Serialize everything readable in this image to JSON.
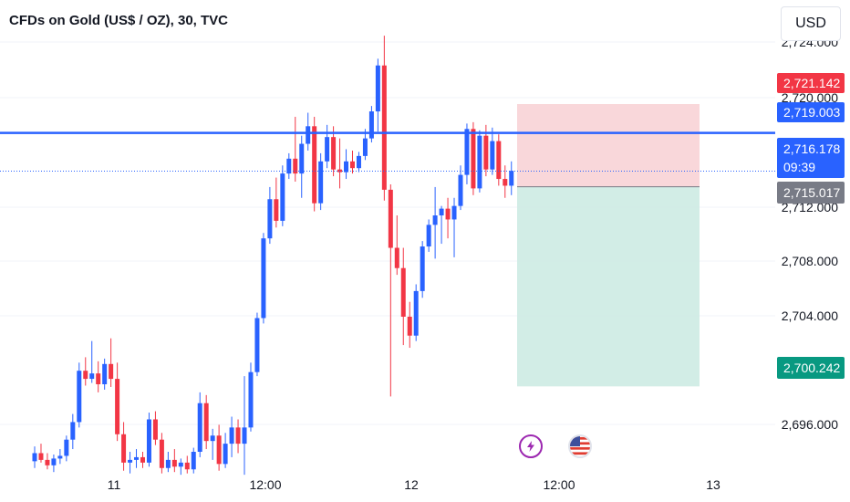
{
  "header": {
    "title": "CFDs on Gold (US$ / OZ), 30, TVC"
  },
  "currency_button": {
    "label": "USD"
  },
  "colors": {
    "up": "#2962ff",
    "down": "#f23645",
    "sl_zone": "#f7c9ce",
    "tp_zone": "#cdebe3"
  },
  "price_labels": {
    "stop_loss": {
      "value": "2,721.142",
      "color": "#f23645"
    },
    "level_line": {
      "value": "2,719.003",
      "color": "#2962ff"
    },
    "last_price": {
      "value": "2,716.178",
      "countdown": "09:39",
      "color": "#2962ff"
    },
    "entry": {
      "value": "2,715.017",
      "color": "#787b86"
    },
    "take_profit": {
      "value": "2,700.242",
      "color": "#089981"
    }
  },
  "events": [
    {
      "icon": "lightning-icon"
    },
    {
      "icon": "us-flag-icon"
    }
  ],
  "chart_data": {
    "type": "candlestick",
    "y_axis": {
      "ticks": [
        "2,724.000",
        "2,720.000",
        "2,712.000",
        "2,708.000",
        "2,704.000",
        "2,696.000"
      ],
      "range": [
        2693.4,
        2726.2
      ]
    },
    "x_axis": {
      "ticks": [
        "11",
        "12:00",
        "12",
        "12:00",
        "13"
      ]
    },
    "horizontal_line": 2719.003,
    "last_price": 2716.178,
    "position": {
      "entry": 2715.017,
      "stop_loss": 2721.142,
      "take_profit": 2700.242
    },
    "candles": [
      [
        2694.7,
        2695.8,
        2694.2,
        2695.3
      ],
      [
        2695.3,
        2696.0,
        2694.6,
        2694.8
      ],
      [
        2694.8,
        2695.3,
        2694.1,
        2694.4
      ],
      [
        2694.4,
        2695.2,
        2693.9,
        2694.9
      ],
      [
        2694.9,
        2695.6,
        2694.5,
        2695.1
      ],
      [
        2695.1,
        2696.6,
        2694.7,
        2696.3
      ],
      [
        2696.3,
        2698.2,
        2695.6,
        2697.6
      ],
      [
        2697.6,
        2702.0,
        2697.2,
        2701.4
      ],
      [
        2701.4,
        2702.4,
        2700.3,
        2700.8
      ],
      [
        2700.8,
        2703.6,
        2700.5,
        2701.2
      ],
      [
        2701.2,
        2702.1,
        2699.8,
        2700.4
      ],
      [
        2700.4,
        2702.3,
        2700.0,
        2701.9
      ],
      [
        2701.9,
        2703.8,
        2700.2,
        2700.8
      ],
      [
        2700.8,
        2702.0,
        2696.2,
        2696.7
      ],
      [
        2696.7,
        2697.6,
        2694.0,
        2694.6
      ],
      [
        2694.6,
        2695.4,
        2693.8,
        2694.8
      ],
      [
        2694.8,
        2695.6,
        2694.2,
        2695.0
      ],
      [
        2695.0,
        2695.4,
        2694.2,
        2694.6
      ],
      [
        2694.6,
        2698.3,
        2694.3,
        2697.8
      ],
      [
        2697.8,
        2698.4,
        2695.9,
        2696.3
      ],
      [
        2696.3,
        2696.8,
        2693.8,
        2694.2
      ],
      [
        2694.2,
        2695.4,
        2693.9,
        2694.8
      ],
      [
        2694.8,
        2695.6,
        2693.9,
        2694.3
      ],
      [
        2694.3,
        2694.9,
        2693.7,
        2694.6
      ],
      [
        2694.6,
        2695.1,
        2693.8,
        2694.1
      ],
      [
        2694.1,
        2695.7,
        2693.8,
        2695.4
      ],
      [
        2695.4,
        2699.8,
        2695.0,
        2699.0
      ],
      [
        2699.0,
        2699.6,
        2695.6,
        2696.2
      ],
      [
        2696.2,
        2697.1,
        2694.8,
        2696.6
      ],
      [
        2696.6,
        2697.4,
        2694.0,
        2694.5
      ],
      [
        2694.5,
        2696.8,
        2694.2,
        2696.0
      ],
      [
        2696.0,
        2698.0,
        2695.0,
        2697.2
      ],
      [
        2697.2,
        2697.8,
        2695.3,
        2696.0
      ],
      [
        2696.0,
        2701.0,
        2693.7,
        2697.2
      ],
      [
        2697.2,
        2702.0,
        2696.9,
        2701.3
      ],
      [
        2701.3,
        2705.7,
        2701.0,
        2705.3
      ],
      [
        2705.3,
        2711.6,
        2704.9,
        2711.2
      ],
      [
        2711.2,
        2715.0,
        2710.8,
        2714.1
      ],
      [
        2714.1,
        2715.7,
        2712.0,
        2712.5
      ],
      [
        2712.5,
        2716.6,
        2712.1,
        2716.0
      ],
      [
        2716.0,
        2717.5,
        2715.6,
        2717.1
      ],
      [
        2717.1,
        2720.2,
        2715.4,
        2716.0
      ],
      [
        2716.0,
        2718.8,
        2714.2,
        2718.2
      ],
      [
        2718.2,
        2720.5,
        2717.7,
        2719.5
      ],
      [
        2719.5,
        2720.2,
        2713.2,
        2713.8
      ],
      [
        2713.8,
        2717.5,
        2713.3,
        2716.9
      ],
      [
        2716.9,
        2719.6,
        2716.4,
        2718.7
      ],
      [
        2718.7,
        2719.5,
        2715.8,
        2716.3
      ],
      [
        2716.3,
        2718.6,
        2714.9,
        2716.1
      ],
      [
        2716.1,
        2717.8,
        2715.6,
        2716.9
      ],
      [
        2716.9,
        2717.7,
        2716.0,
        2716.4
      ],
      [
        2716.4,
        2717.6,
        2716.1,
        2717.3
      ],
      [
        2717.3,
        2719.3,
        2717.0,
        2718.6
      ],
      [
        2718.6,
        2721.0,
        2718.3,
        2720.6
      ],
      [
        2720.6,
        2724.5,
        2719.1,
        2724.0
      ],
      [
        2724.0,
        2726.2,
        2714.0,
        2714.8
      ],
      [
        2714.8,
        2715.2,
        2699.5,
        2710.5
      ],
      [
        2710.5,
        2712.9,
        2708.5,
        2709.0
      ],
      [
        2709.0,
        2710.5,
        2703.3,
        2705.4
      ],
      [
        2705.4,
        2706.5,
        2703.1,
        2704.0
      ],
      [
        2704.0,
        2707.8,
        2703.6,
        2707.3
      ],
      [
        2707.3,
        2711.0,
        2706.8,
        2710.6
      ],
      [
        2710.6,
        2712.6,
        2710.2,
        2712.2
      ],
      [
        2712.2,
        2715.0,
        2709.7,
        2712.9
      ],
      [
        2712.9,
        2713.6,
        2710.8,
        2713.4
      ],
      [
        2713.4,
        2714.2,
        2711.2,
        2712.6
      ],
      [
        2712.6,
        2714.2,
        2709.8,
        2713.6
      ],
      [
        2713.6,
        2716.6,
        2713.3,
        2715.9
      ],
      [
        2715.9,
        2719.7,
        2715.2,
        2719.3
      ],
      [
        2719.3,
        2719.8,
        2714.4,
        2714.9
      ],
      [
        2714.9,
        2719.2,
        2714.6,
        2718.8
      ],
      [
        2718.8,
        2719.6,
        2715.8,
        2716.3
      ],
      [
        2716.3,
        2719.4,
        2715.9,
        2718.4
      ],
      [
        2718.4,
        2718.9,
        2715.1,
        2715.6
      ],
      [
        2715.6,
        2716.6,
        2714.2,
        2715.1
      ],
      [
        2715.1,
        2716.9,
        2714.4,
        2716.2
      ]
    ]
  }
}
